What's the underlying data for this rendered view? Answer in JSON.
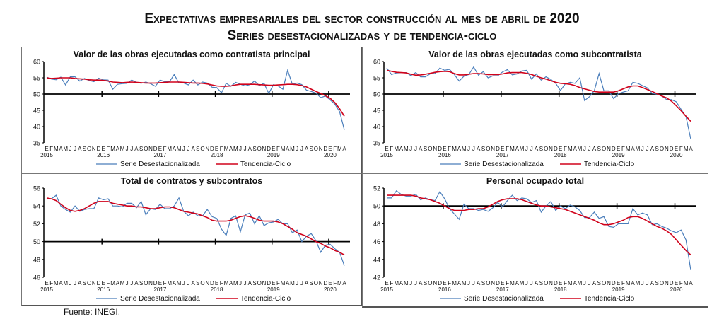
{
  "header": {
    "title_line1": "Expectativas empresariales del sector construcción al mes de abril de 2020",
    "title_line2": "Series desestacionalizadas y de tendencia-ciclo"
  },
  "source": "Fuente:  INEGI.",
  "colors": {
    "serie": "#4a7ebb",
    "tendencia": "#d0021b",
    "reference": "#000000"
  },
  "chart_data": [
    {
      "type": "line",
      "title": "Valor de las obras ejecutadas  como contratista  principal",
      "ylim": [
        35,
        60
      ],
      "yticks": [
        35,
        40,
        45,
        50,
        55,
        60
      ],
      "reference_line": 50,
      "month_labels": [
        "E",
        "F",
        "M",
        "A",
        "M",
        "J",
        "J",
        "A",
        "S",
        "O",
        "N",
        "D"
      ],
      "years": [
        "2015",
        "2016",
        "2017",
        "2018",
        "2019",
        "2020"
      ],
      "x_range": "Jan 2015 - Apr 2020",
      "legend": "bottom-center",
      "series": [
        {
          "name": "Serie Desestacionalizada",
          "values": [
            55.2,
            54.6,
            54.4,
            55.2,
            52.8,
            55.3,
            55.3,
            54.0,
            54.8,
            54.2,
            53.8,
            54.9,
            54.4,
            54.3,
            51.5,
            53.0,
            53.2,
            53.3,
            54.3,
            53.6,
            53.3,
            53.7,
            53.2,
            52.4,
            54.3,
            53.8,
            53.8,
            56.0,
            53.4,
            53.4,
            52.8,
            54.3,
            52.8,
            53.7,
            53.4,
            52.1,
            52.0,
            50.4,
            53.3,
            52.4,
            53.6,
            53.0,
            52.5,
            52.9,
            54.0,
            52.6,
            53.3,
            50.2,
            52.9,
            52.5,
            51.5,
            57.3,
            53.0,
            53.4,
            52.9,
            51.2,
            50.8,
            50.3,
            48.9,
            49.4,
            48.2,
            46.9,
            44.6,
            39.0
          ]
        },
        {
          "name": "Tendencia-Ciclo",
          "values": [
            55.0,
            54.8,
            54.9,
            55.0,
            55.0,
            55.0,
            54.8,
            54.7,
            54.6,
            54.4,
            54.3,
            54.3,
            54.2,
            54.0,
            53.7,
            53.6,
            53.5,
            53.6,
            53.7,
            53.6,
            53.5,
            53.4,
            53.4,
            53.4,
            53.5,
            53.6,
            53.7,
            53.7,
            53.7,
            53.6,
            53.5,
            53.4,
            53.4,
            53.3,
            53.1,
            52.8,
            52.5,
            52.4,
            52.4,
            52.5,
            52.8,
            53.0,
            53.0,
            53.0,
            53.0,
            52.9,
            52.8,
            52.7,
            52.7,
            52.8,
            52.9,
            53.0,
            53.0,
            52.9,
            52.6,
            52.2,
            51.5,
            50.8,
            50.2,
            49.5,
            48.7,
            47.4,
            45.5,
            43.2
          ]
        }
      ]
    },
    {
      "type": "line",
      "title": "Valor de las obras ejecutadas  como subcontratista",
      "ylim": [
        35,
        60
      ],
      "yticks": [
        35,
        40,
        45,
        50,
        55,
        60
      ],
      "reference_line": 50,
      "month_labels": [
        "E",
        "F",
        "M",
        "A",
        "M",
        "J",
        "J",
        "A",
        "S",
        "O",
        "N",
        "D"
      ],
      "years": [
        "2015",
        "2016",
        "2017",
        "2018",
        "2019",
        "2020"
      ],
      "x_range": "Jan 2015 - Apr 2020",
      "legend": "bottom-center",
      "series": [
        {
          "name": "Serie Desestacionalizada",
          "values": [
            58.0,
            56.0,
            56.5,
            56.6,
            56.6,
            55.7,
            56.6,
            55.3,
            55.3,
            56.2,
            56.3,
            58.0,
            57.3,
            57.6,
            56.0,
            54.0,
            55.5,
            56.0,
            58.3,
            55.8,
            56.9,
            55.0,
            55.6,
            55.6,
            56.8,
            57.5,
            55.9,
            56.2,
            57.1,
            57.3,
            54.6,
            56.2,
            54.3,
            55.3,
            54.5,
            53.3,
            51.1,
            53.1,
            53.6,
            53.3,
            55.0,
            48.0,
            49.2,
            51.0,
            56.3,
            51.0,
            51.0,
            48.6,
            50.1,
            50.6,
            51.0,
            53.6,
            53.3,
            52.6,
            51.9,
            50.2,
            50.0,
            49.4,
            48.3,
            48.3,
            47.6,
            45.3,
            43.1,
            36.2
          ]
        },
        {
          "name": "Tendencia-Ciclo",
          "values": [
            57.3,
            57.0,
            56.7,
            56.6,
            56.5,
            56.1,
            55.8,
            55.9,
            56.1,
            56.4,
            56.7,
            56.9,
            57.0,
            56.9,
            56.3,
            55.9,
            55.9,
            56.1,
            56.3,
            56.3,
            56.2,
            56.0,
            56.0,
            56.0,
            56.2,
            56.5,
            56.6,
            56.6,
            56.6,
            56.4,
            56.0,
            55.5,
            55.0,
            54.6,
            54.1,
            53.6,
            53.3,
            53.2,
            53.0,
            52.6,
            52.0,
            51.6,
            51.2,
            50.8,
            50.6,
            50.6,
            50.6,
            50.6,
            51.0,
            51.6,
            52.2,
            52.5,
            52.5,
            52.0,
            51.4,
            50.8,
            50.1,
            49.4,
            48.8,
            47.8,
            46.4,
            44.9,
            43.2,
            41.6
          ]
        }
      ]
    },
    {
      "type": "line",
      "title": "Total de contratos  y subcontratos",
      "ylim": [
        46,
        56
      ],
      "yticks": [
        46,
        48,
        50,
        52,
        54,
        56
      ],
      "reference_line": 50,
      "month_labels": [
        "E",
        "F",
        "M",
        "A",
        "M",
        "J",
        "J",
        "A",
        "S",
        "O",
        "N",
        "D"
      ],
      "years": [
        "2015",
        "2016",
        "2017",
        "2018",
        "2019",
        "2020"
      ],
      "x_range": "Jan 2015 - Apr 2020",
      "legend": "bottom-center",
      "series": [
        {
          "name": "Serie Desestacionalizada",
          "values": [
            54.8,
            54.8,
            55.2,
            54.0,
            53.6,
            53.3,
            54.0,
            53.4,
            53.6,
            53.7,
            53.7,
            54.9,
            54.7,
            54.8,
            54.0,
            54.0,
            53.9,
            54.3,
            54.3,
            53.8,
            54.5,
            53.0,
            53.7,
            53.6,
            54.2,
            53.7,
            53.7,
            54.0,
            54.9,
            53.4,
            52.9,
            53.3,
            52.9,
            52.9,
            53.6,
            52.8,
            52.6,
            51.4,
            50.7,
            52.6,
            52.9,
            51.1,
            53.0,
            53.2,
            52.0,
            52.9,
            51.8,
            52.1,
            52.2,
            52.5,
            52.0,
            52.0,
            51.0,
            51.3,
            50.0,
            50.6,
            50.9,
            50.1,
            48.8,
            49.6,
            49.7,
            49.2,
            48.8,
            47.3
          ]
        },
        {
          "name": "Tendencia-Ciclo",
          "values": [
            54.9,
            54.8,
            54.6,
            54.2,
            53.8,
            53.5,
            53.4,
            53.5,
            53.7,
            54.0,
            54.3,
            54.5,
            54.5,
            54.5,
            54.3,
            54.2,
            54.1,
            54.0,
            54.0,
            53.9,
            53.9,
            53.8,
            53.7,
            53.7,
            53.8,
            53.9,
            53.9,
            53.8,
            53.6,
            53.4,
            53.3,
            53.2,
            53.1,
            52.9,
            52.7,
            52.4,
            52.3,
            52.3,
            52.3,
            52.4,
            52.6,
            52.8,
            52.9,
            52.8,
            52.6,
            52.4,
            52.3,
            52.3,
            52.3,
            52.2,
            52.0,
            51.7,
            51.4,
            51.0,
            50.8,
            50.6,
            50.3,
            50.0,
            49.8,
            49.5,
            49.3,
            49.0,
            48.8,
            48.5
          ]
        }
      ]
    },
    {
      "type": "line",
      "title": "Personal  ocupado  total",
      "ylim": [
        42,
        52
      ],
      "yticks": [
        42,
        44,
        46,
        48,
        50,
        52
      ],
      "reference_line": 50,
      "month_labels": [
        "E",
        "F",
        "M",
        "A",
        "M",
        "J",
        "J",
        "A",
        "S",
        "O",
        "N",
        "D"
      ],
      "years": [
        "2015",
        "2016",
        "2017",
        "2018",
        "2019",
        "2020"
      ],
      "x_range": "Jan 2015 - Apr 2020",
      "legend": "bottom-center",
      "series": [
        {
          "name": "Serie Desestacionalizada",
          "values": [
            50.9,
            50.9,
            51.7,
            51.3,
            51.1,
            51.1,
            51.3,
            50.7,
            50.9,
            50.7,
            50.6,
            51.6,
            50.8,
            49.7,
            49.1,
            48.5,
            50.2,
            49.7,
            49.7,
            49.5,
            49.6,
            49.4,
            49.8,
            50.4,
            49.9,
            50.6,
            51.2,
            50.6,
            50.9,
            50.8,
            50.4,
            50.6,
            49.3,
            50.0,
            50.5,
            49.5,
            50.0,
            49.7,
            50.1,
            49.9,
            49.5,
            48.7,
            48.7,
            49.3,
            48.6,
            48.8,
            47.7,
            47.6,
            48.0,
            48.0,
            48.0,
            49.7,
            49.0,
            49.2,
            49.0,
            47.9,
            48.0,
            47.7,
            47.5,
            47.2,
            47.0,
            47.3,
            46.2,
            42.8
          ]
        },
        {
          "name": "Tendencia-Ciclo",
          "values": [
            51.2,
            51.2,
            51.2,
            51.2,
            51.2,
            51.2,
            51.1,
            50.9,
            50.8,
            50.7,
            50.5,
            50.3,
            50.0,
            49.7,
            49.5,
            49.5,
            49.5,
            49.6,
            49.6,
            49.7,
            49.7,
            49.9,
            50.2,
            50.5,
            50.7,
            50.8,
            50.8,
            50.8,
            50.7,
            50.5,
            50.3,
            50.1,
            50.0,
            50.0,
            49.9,
            49.8,
            49.7,
            49.6,
            49.4,
            49.2,
            49.0,
            48.8,
            48.6,
            48.4,
            48.1,
            47.9,
            47.9,
            48.0,
            48.2,
            48.4,
            48.7,
            48.8,
            48.8,
            48.6,
            48.3,
            48.0,
            47.7,
            47.5,
            47.2,
            46.8,
            46.2,
            45.6,
            45.0,
            44.5
          ]
        }
      ]
    }
  ]
}
